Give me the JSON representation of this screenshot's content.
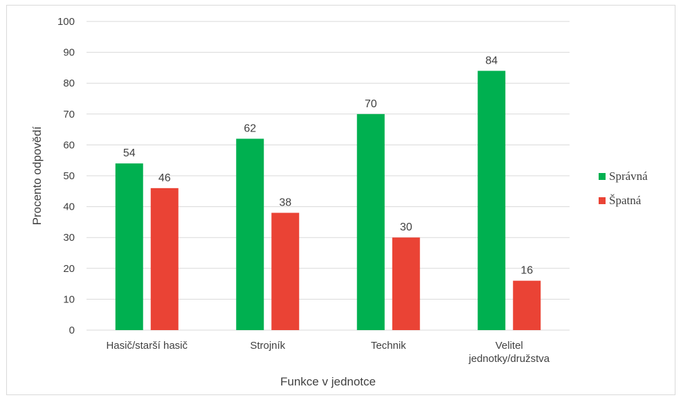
{
  "chart_data": {
    "type": "bar",
    "title": "",
    "xlabel": "Funkce v jednotce",
    "ylabel": "Procento odpovědí",
    "ylim": [
      0,
      100
    ],
    "yticks": [
      0,
      10,
      20,
      30,
      40,
      50,
      60,
      70,
      80,
      90,
      100
    ],
    "categories": [
      [
        "Hasič/starší hasič"
      ],
      [
        "Strojník"
      ],
      [
        "Technik"
      ],
      [
        "Velitel",
        "jednotky/družstva"
      ]
    ],
    "series": [
      {
        "name": "Správná",
        "color": "#00b050",
        "values": [
          54,
          62,
          70,
          84
        ]
      },
      {
        "name": "Špatná",
        "color": "#ea4335",
        "values": [
          46,
          38,
          30,
          16
        ]
      }
    ],
    "data_labels": true,
    "grid": true,
    "legend": "right"
  }
}
